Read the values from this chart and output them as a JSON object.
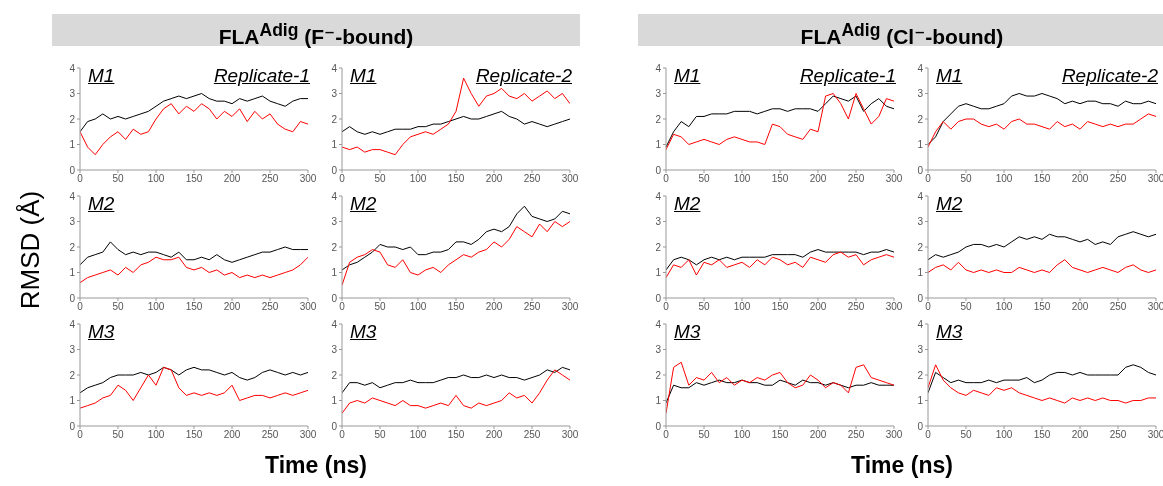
{
  "chart_data": [
    {
      "type": "line",
      "title": "FLA$^{Adig}$ (F⁻-bound)",
      "ylabel": "RMSD (Å)",
      "annotations": [
        "M1",
        "Replicate-1"
      ],
      "xlim": [
        0,
        300
      ],
      "xticks": [
        0,
        50,
        100,
        150,
        200,
        250,
        300
      ],
      "ylim": [
        0,
        4
      ],
      "yticks": [
        0,
        1,
        2,
        3,
        4
      ],
      "x": [
        0,
        10,
        20,
        30,
        40,
        50,
        60,
        70,
        80,
        90,
        100,
        110,
        120,
        130,
        140,
        150,
        160,
        170,
        180,
        190,
        200,
        210,
        220,
        230,
        240,
        250,
        260,
        270,
        280,
        290,
        300
      ],
      "series": [
        {
          "color": "#000000",
          "values": [
            1.5,
            1.9,
            2.0,
            2.2,
            2.0,
            2.1,
            2.0,
            2.1,
            2.2,
            2.3,
            2.5,
            2.7,
            2.8,
            2.9,
            2.8,
            2.9,
            3.0,
            2.8,
            2.7,
            2.7,
            2.6,
            2.8,
            2.7,
            2.8,
            2.9,
            2.7,
            2.6,
            2.5,
            2.7,
            2.8,
            2.8
          ]
        },
        {
          "color": "#ff0000",
          "values": [
            1.5,
            0.9,
            0.6,
            1.0,
            1.3,
            1.5,
            1.2,
            1.6,
            1.4,
            1.5,
            2.0,
            2.4,
            2.6,
            2.2,
            2.5,
            2.3,
            2.6,
            2.4,
            2.0,
            2.3,
            2.1,
            2.4,
            1.9,
            2.3,
            2.0,
            2.2,
            1.8,
            1.6,
            1.5,
            1.9,
            1.8
          ]
        }
      ]
    },
    {
      "type": "line",
      "annotations": [
        "M1",
        "Replicate-2"
      ],
      "xlim": [
        0,
        300
      ],
      "xticks": [
        0,
        50,
        100,
        150,
        200,
        250,
        300
      ],
      "ylim": [
        0,
        4
      ],
      "yticks": [
        0,
        1,
        2,
        3,
        4
      ],
      "x": [
        0,
        10,
        20,
        30,
        40,
        50,
        60,
        70,
        80,
        90,
        100,
        110,
        120,
        130,
        140,
        150,
        160,
        170,
        180,
        190,
        200,
        210,
        220,
        230,
        240,
        250,
        260,
        270,
        280,
        290,
        300
      ],
      "series": [
        {
          "color": "#000000",
          "values": [
            1.5,
            1.7,
            1.5,
            1.4,
            1.5,
            1.4,
            1.5,
            1.6,
            1.6,
            1.6,
            1.7,
            1.7,
            1.8,
            1.8,
            1.9,
            2.0,
            2.1,
            2.0,
            2.0,
            2.1,
            2.2,
            2.3,
            2.1,
            2.0,
            1.8,
            1.9,
            1.8,
            1.7,
            1.8,
            1.9,
            2.0
          ]
        },
        {
          "color": "#ff0000",
          "values": [
            0.9,
            0.8,
            0.9,
            0.7,
            0.8,
            0.8,
            0.7,
            0.6,
            1.0,
            1.3,
            1.4,
            1.5,
            1.4,
            1.6,
            1.8,
            2.3,
            3.6,
            3.0,
            2.5,
            2.9,
            3.0,
            3.2,
            2.9,
            2.8,
            3.0,
            2.7,
            2.9,
            3.1,
            2.8,
            3.0,
            2.6
          ]
        }
      ]
    },
    {
      "type": "line",
      "annotations": [
        "M2"
      ],
      "xlim": [
        0,
        300
      ],
      "xticks": [
        0,
        50,
        100,
        150,
        200,
        250,
        300
      ],
      "ylim": [
        0,
        4
      ],
      "yticks": [
        0,
        1,
        2,
        3,
        4
      ],
      "x": [
        0,
        10,
        20,
        30,
        40,
        50,
        60,
        70,
        80,
        90,
        100,
        110,
        120,
        130,
        140,
        150,
        160,
        170,
        180,
        190,
        200,
        210,
        220,
        230,
        240,
        250,
        260,
        270,
        280,
        290,
        300
      ],
      "series": [
        {
          "color": "#000000",
          "values": [
            1.3,
            1.6,
            1.7,
            1.8,
            2.2,
            1.9,
            1.7,
            1.8,
            1.7,
            1.8,
            1.8,
            1.7,
            1.6,
            1.8,
            1.5,
            1.5,
            1.6,
            1.5,
            1.7,
            1.5,
            1.4,
            1.5,
            1.6,
            1.7,
            1.8,
            1.8,
            1.9,
            2.0,
            1.9,
            1.9,
            1.9
          ]
        },
        {
          "color": "#ff0000",
          "values": [
            0.6,
            0.8,
            0.9,
            1.0,
            1.1,
            0.9,
            1.2,
            1.0,
            1.3,
            1.4,
            1.6,
            1.5,
            1.5,
            1.6,
            1.2,
            1.1,
            1.2,
            1.0,
            1.1,
            0.9,
            1.0,
            0.8,
            0.9,
            0.8,
            0.9,
            0.8,
            0.9,
            1.0,
            1.1,
            1.3,
            1.6
          ]
        }
      ]
    },
    {
      "type": "line",
      "annotations": [
        "M2"
      ],
      "xlim": [
        0,
        300
      ],
      "xticks": [
        0,
        50,
        100,
        150,
        200,
        250,
        300
      ],
      "ylim": [
        0,
        4
      ],
      "yticks": [
        0,
        1,
        2,
        3,
        4
      ],
      "x": [
        0,
        10,
        20,
        30,
        40,
        50,
        60,
        70,
        80,
        90,
        100,
        110,
        120,
        130,
        140,
        150,
        160,
        170,
        180,
        190,
        200,
        210,
        220,
        230,
        240,
        250,
        260,
        270,
        280,
        290,
        300
      ],
      "series": [
        {
          "color": "#000000",
          "values": [
            1.1,
            1.3,
            1.4,
            1.6,
            1.8,
            2.1,
            2.0,
            2.0,
            1.9,
            2.0,
            1.7,
            1.7,
            1.8,
            1.8,
            1.9,
            2.2,
            2.2,
            2.1,
            2.3,
            2.6,
            2.7,
            2.6,
            2.8,
            3.3,
            3.6,
            3.2,
            3.1,
            3.0,
            3.1,
            3.4,
            3.3
          ]
        },
        {
          "color": "#ff0000",
          "values": [
            0.5,
            1.4,
            1.6,
            1.7,
            1.9,
            1.8,
            1.3,
            1.2,
            1.5,
            1.0,
            0.9,
            1.1,
            1.2,
            1.0,
            1.3,
            1.5,
            1.7,
            1.6,
            1.8,
            1.9,
            2.2,
            2.0,
            2.3,
            2.8,
            2.6,
            2.4,
            2.9,
            2.6,
            3.0,
            2.8,
            3.0
          ]
        }
      ]
    },
    {
      "type": "line",
      "xlabel": "Time (ns)",
      "annotations": [
        "M3"
      ],
      "xlim": [
        0,
        300
      ],
      "xticks": [
        0,
        50,
        100,
        150,
        200,
        250,
        300
      ],
      "ylim": [
        0,
        4
      ],
      "yticks": [
        0,
        1,
        2,
        3,
        4
      ],
      "x": [
        0,
        10,
        20,
        30,
        40,
        50,
        60,
        70,
        80,
        90,
        100,
        110,
        120,
        130,
        140,
        150,
        160,
        170,
        180,
        190,
        200,
        210,
        220,
        230,
        240,
        250,
        260,
        270,
        280,
        290,
        300
      ],
      "series": [
        {
          "color": "#000000",
          "values": [
            1.3,
            1.5,
            1.6,
            1.7,
            1.9,
            2.0,
            2.0,
            2.0,
            2.1,
            2.0,
            2.1,
            2.3,
            2.2,
            2.0,
            2.2,
            2.3,
            2.2,
            2.2,
            2.1,
            2.0,
            2.1,
            1.9,
            1.8,
            1.9,
            2.1,
            2.2,
            2.1,
            2.0,
            2.1,
            2.0,
            2.1
          ]
        },
        {
          "color": "#ff0000",
          "values": [
            0.7,
            0.8,
            0.9,
            1.1,
            1.2,
            1.6,
            1.4,
            1.0,
            1.5,
            2.0,
            1.6,
            2.3,
            2.2,
            1.5,
            1.2,
            1.3,
            1.2,
            1.3,
            1.2,
            1.3,
            1.6,
            1.0,
            1.1,
            1.2,
            1.2,
            1.1,
            1.2,
            1.3,
            1.2,
            1.3,
            1.4
          ]
        }
      ]
    },
    {
      "type": "line",
      "annotations": [
        "M3"
      ],
      "xlim": [
        0,
        300
      ],
      "xticks": [
        0,
        50,
        100,
        150,
        200,
        250,
        300
      ],
      "ylim": [
        0,
        4
      ],
      "yticks": [
        0,
        1,
        2,
        3,
        4
      ],
      "x": [
        0,
        10,
        20,
        30,
        40,
        50,
        60,
        70,
        80,
        90,
        100,
        110,
        120,
        130,
        140,
        150,
        160,
        170,
        180,
        190,
        200,
        210,
        220,
        230,
        240,
        250,
        260,
        270,
        280,
        290,
        300
      ],
      "series": [
        {
          "color": "#000000",
          "values": [
            1.3,
            1.7,
            1.7,
            1.6,
            1.7,
            1.5,
            1.6,
            1.7,
            1.7,
            1.8,
            1.7,
            1.7,
            1.7,
            1.8,
            1.9,
            1.9,
            2.0,
            1.9,
            1.9,
            2.0,
            1.9,
            2.0,
            1.9,
            1.9,
            1.8,
            1.9,
            2.0,
            2.2,
            2.1,
            2.3,
            2.2
          ]
        },
        {
          "color": "#ff0000",
          "values": [
            0.5,
            0.9,
            1.0,
            0.9,
            1.1,
            1.0,
            0.9,
            0.8,
            1.0,
            0.8,
            0.8,
            0.7,
            0.8,
            0.9,
            0.8,
            1.2,
            0.8,
            0.7,
            0.9,
            0.8,
            0.9,
            1.0,
            1.3,
            1.1,
            1.2,
            0.9,
            1.3,
            1.8,
            2.2,
            2.0,
            1.8
          ]
        }
      ]
    },
    {
      "type": "line",
      "title": "FLA$^{Adig}$ (Cl⁻-bound)",
      "annotations": [
        "M1",
        "Replicate-1"
      ],
      "xlim": [
        0,
        300
      ],
      "xticks": [
        0,
        50,
        100,
        150,
        200,
        250,
        300
      ],
      "ylim": [
        0,
        4
      ],
      "yticks": [
        0,
        1,
        2,
        3,
        4
      ],
      "x": [
        0,
        10,
        20,
        30,
        40,
        50,
        60,
        70,
        80,
        90,
        100,
        110,
        120,
        130,
        140,
        150,
        160,
        170,
        180,
        190,
        200,
        210,
        220,
        230,
        240,
        250,
        260,
        270,
        280,
        290,
        300
      ],
      "series": [
        {
          "color": "#000000",
          "values": [
            0.9,
            1.5,
            1.9,
            1.7,
            2.1,
            2.1,
            2.2,
            2.2,
            2.2,
            2.3,
            2.3,
            2.3,
            2.2,
            2.3,
            2.4,
            2.4,
            2.3,
            2.4,
            2.4,
            2.4,
            2.3,
            2.6,
            2.9,
            2.8,
            2.7,
            2.9,
            2.3,
            2.6,
            2.8,
            2.5,
            2.4
          ]
        },
        {
          "color": "#ff0000",
          "values": [
            0.8,
            1.4,
            1.3,
            1.0,
            1.1,
            1.2,
            1.1,
            1.0,
            1.2,
            1.3,
            1.2,
            1.1,
            1.1,
            1.0,
            1.8,
            1.7,
            1.4,
            1.3,
            1.2,
            1.6,
            1.5,
            2.9,
            3.0,
            2.6,
            2.0,
            3.0,
            2.4,
            1.8,
            2.1,
            2.8,
            2.7
          ]
        }
      ]
    },
    {
      "type": "line",
      "annotations": [
        "M1",
        "Replicate-2"
      ],
      "xlim": [
        0,
        300
      ],
      "xticks": [
        0,
        50,
        100,
        150,
        200,
        250,
        300
      ],
      "ylim": [
        0,
        4
      ],
      "yticks": [
        0,
        1,
        2,
        3,
        4
      ],
      "x": [
        0,
        10,
        20,
        30,
        40,
        50,
        60,
        70,
        80,
        90,
        100,
        110,
        120,
        130,
        140,
        150,
        160,
        170,
        180,
        190,
        200,
        210,
        220,
        230,
        240,
        250,
        260,
        270,
        280,
        290,
        300
      ],
      "series": [
        {
          "color": "#000000",
          "values": [
            1.0,
            1.3,
            1.9,
            2.2,
            2.5,
            2.6,
            2.5,
            2.4,
            2.4,
            2.5,
            2.6,
            2.9,
            3.0,
            2.9,
            2.9,
            3.0,
            2.9,
            2.8,
            2.6,
            2.7,
            2.6,
            2.7,
            2.7,
            2.6,
            2.6,
            2.5,
            2.7,
            2.6,
            2.6,
            2.7,
            2.6
          ]
        },
        {
          "color": "#ff0000",
          "values": [
            0.9,
            1.5,
            1.9,
            1.6,
            1.9,
            2.0,
            2.0,
            1.8,
            1.7,
            1.8,
            1.6,
            1.9,
            2.0,
            1.8,
            1.8,
            1.7,
            1.6,
            1.9,
            1.7,
            1.8,
            1.6,
            1.9,
            1.8,
            1.7,
            1.8,
            1.7,
            1.8,
            1.8,
            2.0,
            2.2,
            2.1
          ]
        }
      ]
    },
    {
      "type": "line",
      "annotations": [
        "M2"
      ],
      "xlim": [
        0,
        300
      ],
      "xticks": [
        0,
        50,
        100,
        150,
        200,
        250,
        300
      ],
      "ylim": [
        0,
        4
      ],
      "yticks": [
        0,
        1,
        2,
        3,
        4
      ],
      "x": [
        0,
        10,
        20,
        30,
        40,
        50,
        60,
        70,
        80,
        90,
        100,
        110,
        120,
        130,
        140,
        150,
        160,
        170,
        180,
        190,
        200,
        210,
        220,
        230,
        240,
        250,
        260,
        270,
        280,
        290,
        300
      ],
      "series": [
        {
          "color": "#000000",
          "values": [
            1.1,
            1.5,
            1.6,
            1.5,
            1.3,
            1.5,
            1.6,
            1.5,
            1.6,
            1.5,
            1.6,
            1.6,
            1.6,
            1.6,
            1.7,
            1.7,
            1.7,
            1.7,
            1.6,
            1.8,
            1.9,
            1.8,
            1.8,
            1.8,
            1.8,
            1.8,
            1.7,
            1.8,
            1.8,
            1.9,
            1.8
          ]
        },
        {
          "color": "#ff0000",
          "values": [
            0.8,
            1.3,
            1.2,
            1.5,
            0.9,
            1.4,
            1.3,
            1.5,
            1.2,
            1.3,
            1.4,
            1.2,
            1.5,
            1.3,
            1.6,
            1.5,
            1.3,
            1.4,
            1.2,
            1.6,
            1.5,
            1.4,
            1.7,
            1.8,
            1.6,
            1.7,
            1.3,
            1.5,
            1.6,
            1.7,
            1.6
          ]
        }
      ]
    },
    {
      "type": "line",
      "annotations": [
        "M2"
      ],
      "xlim": [
        0,
        300
      ],
      "xticks": [
        0,
        50,
        100,
        150,
        200,
        250,
        300
      ],
      "ylim": [
        0,
        4
      ],
      "yticks": [
        0,
        1,
        2,
        3,
        4
      ],
      "x": [
        0,
        10,
        20,
        30,
        40,
        50,
        60,
        70,
        80,
        90,
        100,
        110,
        120,
        130,
        140,
        150,
        160,
        170,
        180,
        190,
        200,
        210,
        220,
        230,
        240,
        250,
        260,
        270,
        280,
        290,
        300
      ],
      "series": [
        {
          "color": "#000000",
          "values": [
            1.5,
            1.7,
            1.6,
            1.7,
            1.8,
            2.0,
            2.1,
            2.1,
            2.0,
            2.1,
            2.0,
            2.2,
            2.4,
            2.3,
            2.4,
            2.3,
            2.5,
            2.4,
            2.4,
            2.3,
            2.2,
            2.3,
            2.1,
            2.2,
            2.1,
            2.4,
            2.5,
            2.6,
            2.5,
            2.4,
            2.5
          ]
        },
        {
          "color": "#ff0000",
          "values": [
            1.0,
            1.2,
            1.3,
            1.1,
            1.4,
            1.1,
            1.0,
            1.1,
            1.0,
            1.1,
            1.0,
            1.0,
            1.2,
            1.1,
            1.0,
            1.1,
            1.0,
            1.3,
            1.5,
            1.2,
            1.1,
            1.0,
            1.1,
            1.2,
            1.1,
            1.0,
            1.2,
            1.3,
            1.1,
            1.0,
            1.1
          ]
        }
      ]
    },
    {
      "type": "line",
      "xlabel": "Time (ns)",
      "annotations": [
        "M3"
      ],
      "xlim": [
        0,
        300
      ],
      "xticks": [
        0,
        50,
        100,
        150,
        200,
        250,
        300
      ],
      "ylim": [
        0,
        4
      ],
      "yticks": [
        0,
        1,
        2,
        3,
        4
      ],
      "x": [
        0,
        10,
        20,
        30,
        40,
        50,
        60,
        70,
        80,
        90,
        100,
        110,
        120,
        130,
        140,
        150,
        160,
        170,
        180,
        190,
        200,
        210,
        220,
        230,
        240,
        250,
        260,
        270,
        280,
        290,
        300
      ],
      "series": [
        {
          "color": "#000000",
          "values": [
            0.9,
            1.6,
            1.5,
            1.5,
            1.7,
            1.6,
            1.7,
            1.8,
            1.7,
            1.7,
            1.8,
            1.7,
            1.7,
            1.6,
            1.6,
            1.8,
            1.7,
            1.6,
            1.8,
            1.7,
            1.7,
            1.6,
            1.7,
            1.6,
            1.5,
            1.6,
            1.6,
            1.7,
            1.6,
            1.6,
            1.6
          ]
        },
        {
          "color": "#ff0000",
          "values": [
            0.5,
            2.3,
            2.5,
            1.6,
            1.9,
            1.8,
            2.1,
            1.7,
            1.9,
            1.6,
            1.8,
            1.7,
            1.9,
            1.8,
            2.0,
            2.1,
            1.7,
            1.5,
            1.6,
            2.0,
            1.8,
            1.5,
            1.7,
            1.6,
            1.3,
            2.3,
            2.4,
            1.9,
            1.8,
            1.7,
            1.6
          ]
        }
      ]
    },
    {
      "type": "line",
      "annotations": [
        "M3"
      ],
      "xlim": [
        0,
        300
      ],
      "xticks": [
        0,
        50,
        100,
        150,
        200,
        250,
        300
      ],
      "ylim": [
        0,
        4
      ],
      "yticks": [
        0,
        1,
        2,
        3,
        4
      ],
      "x": [
        0,
        10,
        20,
        30,
        40,
        50,
        60,
        70,
        80,
        90,
        100,
        110,
        120,
        130,
        140,
        150,
        160,
        170,
        180,
        190,
        200,
        210,
        220,
        230,
        240,
        250,
        260,
        270,
        280,
        290,
        300
      ],
      "series": [
        {
          "color": "#000000",
          "values": [
            1.3,
            2.1,
            1.9,
            1.7,
            1.8,
            1.7,
            1.7,
            1.7,
            1.8,
            1.7,
            1.8,
            1.8,
            1.8,
            1.9,
            1.7,
            1.8,
            2.0,
            2.1,
            2.1,
            2.0,
            2.1,
            2.0,
            2.0,
            2.0,
            2.0,
            2.0,
            2.3,
            2.4,
            2.3,
            2.1,
            2.0
          ]
        },
        {
          "color": "#ff0000",
          "values": [
            1.5,
            2.4,
            1.8,
            1.5,
            1.3,
            1.2,
            1.4,
            1.3,
            1.2,
            1.5,
            1.4,
            1.5,
            1.3,
            1.2,
            1.1,
            1.0,
            1.1,
            1.0,
            0.9,
            1.1,
            1.0,
            1.1,
            1.0,
            1.1,
            1.0,
            1.0,
            0.9,
            1.0,
            1.0,
            1.1,
            1.1
          ]
        }
      ]
    }
  ]
}
